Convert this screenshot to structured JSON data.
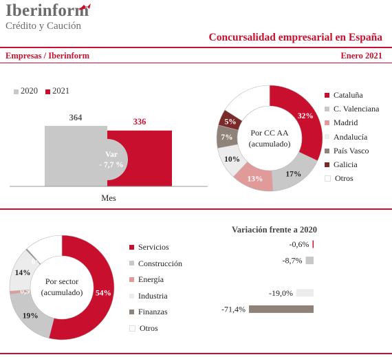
{
  "header": {
    "brand": "Iberinform",
    "brand_sub": "Crédito y Caución",
    "report_title": "Concursalidad empresarial en España",
    "source": "Empresas / Iberinform",
    "period": "Enero 2021"
  },
  "colors": {
    "red": "#c8102e",
    "gray": "#c8c8c8",
    "pink": "#e19a9a",
    "light": "#ececec",
    "taupe": "#8f8279",
    "darkred": "#7b2a2a",
    "white": "#ffffff"
  },
  "chart_data": [
    {
      "type": "bar",
      "categories": [
        "Mes"
      ],
      "series": [
        {
          "name": "2020",
          "values": [
            364
          ],
          "color": "#c8c8c8"
        },
        {
          "name": "2021",
          "values": [
            336
          ],
          "color": "#c8102e"
        }
      ],
      "annotation_line1": "Var",
      "annotation_line2": "- 7,7 %"
    },
    {
      "type": "pie",
      "center_line1": "Por CC AA",
      "center_line2": "(acumulado)",
      "slices": [
        {
          "label": "Cataluña",
          "value": 32,
          "value_label": "32%",
          "color": "#c8102e"
        },
        {
          "label": "C. Valenciana",
          "value": 17,
          "value_label": "17%",
          "color": "#c8c8c8"
        },
        {
          "label": "Madrid",
          "value": 13,
          "value_label": "13%",
          "color": "#e19a9a"
        },
        {
          "label": "Andalucía",
          "value": 10,
          "value_label": "10%",
          "color": "#ececec"
        },
        {
          "label": "País Vasco",
          "value": 7,
          "value_label": "7%",
          "color": "#8f8279"
        },
        {
          "label": "Galicia",
          "value": 5,
          "value_label": "5%",
          "color": "#7b2a2a"
        },
        {
          "label": "Otros",
          "value": 16,
          "value_label": "",
          "color": "#ffffff"
        }
      ]
    },
    {
      "type": "pie",
      "center_line1": "Por sector",
      "center_line2": "(acumulado)",
      "slices": [
        {
          "label": "Servicios",
          "value": 54,
          "value_label": "54%",
          "color": "#c8102e"
        },
        {
          "label": "Construcción",
          "value": 19,
          "value_label": "19%",
          "color": "#c8c8c8"
        },
        {
          "label": "Energía",
          "value": 0.9,
          "value_label": "0,9%",
          "color": "#e19a9a"
        },
        {
          "label": "Industria",
          "value": 14,
          "value_label": "14%",
          "color": "#ececec"
        },
        {
          "label": "Finanzas",
          "value": 0.4,
          "value_label": "0%",
          "color": "#8f8279"
        },
        {
          "label": "Otros",
          "value": 11.7,
          "value_label": "",
          "color": "#ffffff"
        }
      ]
    },
    {
      "type": "bar",
      "orientation": "horizontal",
      "title": "Variación frente a 2020",
      "categories": [
        "Servicios",
        "Construcción",
        "Energía",
        "Industria",
        "Finanzas"
      ],
      "values": [
        -0.6,
        -8.7,
        null,
        -19.0,
        -71.4
      ],
      "value_labels": [
        "-0,6%",
        "-8,7%",
        "",
        "-19,0%",
        "-71,4%"
      ],
      "colors": [
        "#c8102e",
        "#c8c8c8",
        "#e19a9a",
        "#ececec",
        "#8f8279"
      ]
    }
  ]
}
